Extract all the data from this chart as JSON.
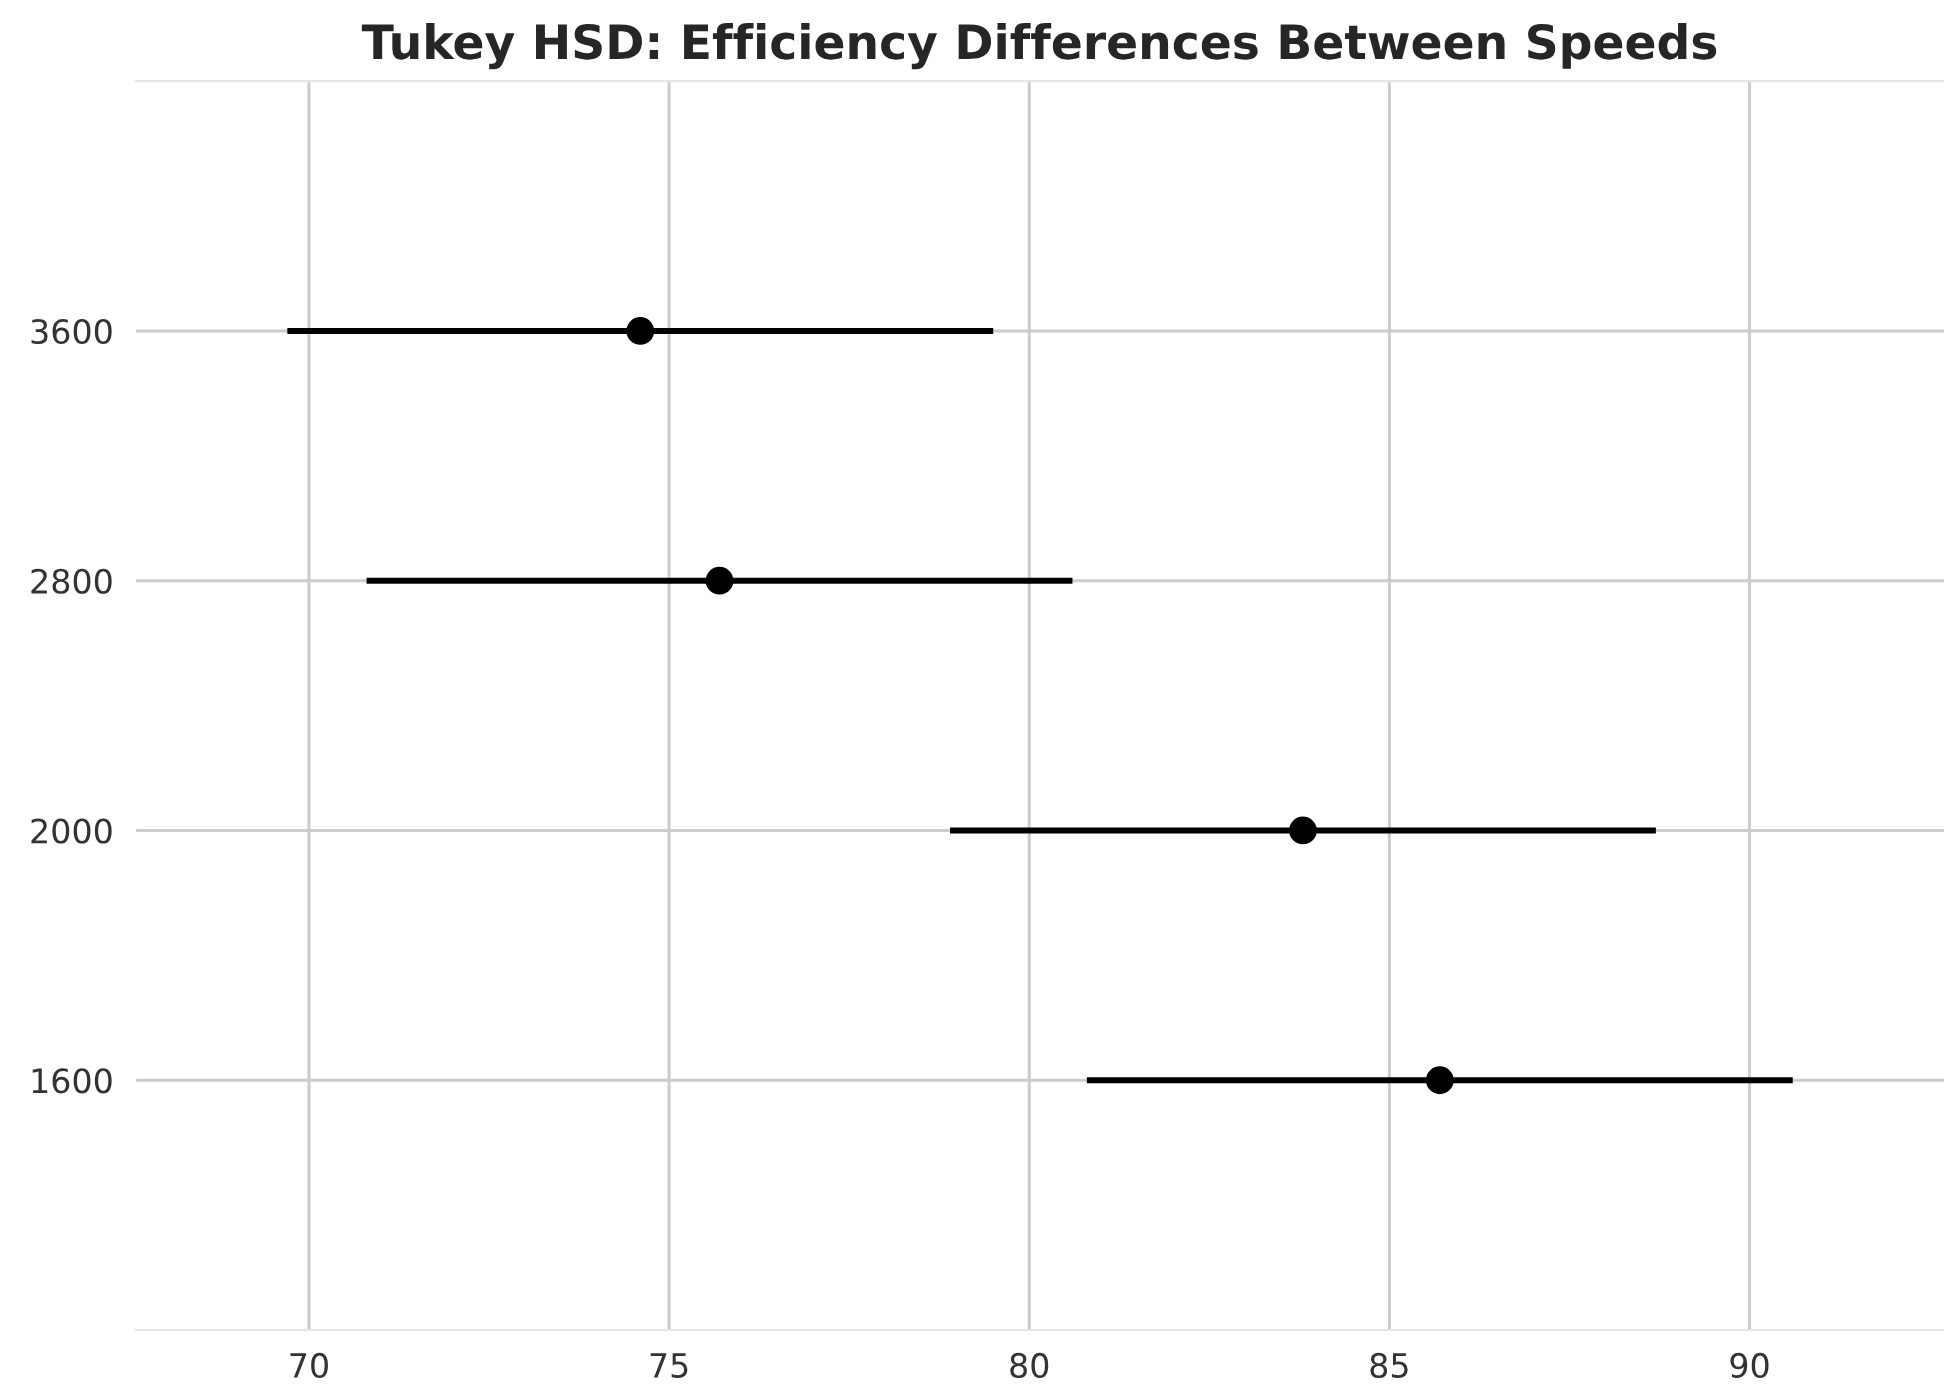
{
  "chart_data": {
    "type": "scatter",
    "orientation": "horizontal",
    "title": "Tukey HSD: Efficiency Differences Between Speeds",
    "categories": [
      "3600",
      "2800",
      "2000",
      "1600"
    ],
    "values": [
      74.6,
      75.7,
      83.8,
      85.7
    ],
    "errors": [
      4.9,
      4.9,
      4.9,
      4.9
    ],
    "color": "#000000",
    "marker": "circle",
    "xlim": [
      67.6,
      92.7
    ],
    "xticks": [
      70,
      75,
      80,
      85,
      90
    ],
    "grid": true
  }
}
